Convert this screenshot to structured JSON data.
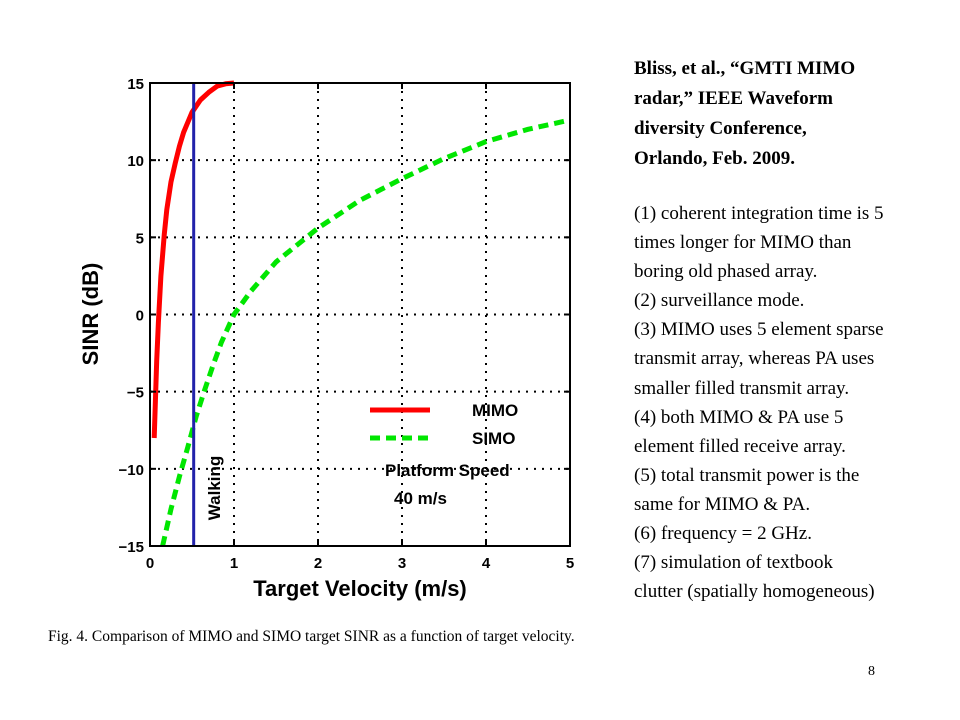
{
  "chart_data": {
    "type": "line",
    "xlabel": "Target Velocity (m/s)",
    "ylabel": "SINR (dB)",
    "xlim": [
      0,
      5
    ],
    "ylim": [
      -15,
      15
    ],
    "xticks": [
      "0",
      "1",
      "2",
      "3",
      "4",
      "5"
    ],
    "yticks": [
      "−15",
      "−10",
      "−5",
      "0",
      "5",
      "10",
      "15"
    ],
    "grid": true,
    "legend_position": "lower-right",
    "series": [
      {
        "name": "MIMO",
        "color": "#ff0000",
        "style": "solid",
        "x": [
          0.05,
          0.08,
          0.1,
          0.13,
          0.17,
          0.2,
          0.25,
          0.3,
          0.35,
          0.4,
          0.5,
          0.6,
          0.7,
          0.8,
          0.9,
          1.0
        ],
        "y": [
          -8,
          -3,
          -0.5,
          2.5,
          5.2,
          6.8,
          8.6,
          9.8,
          10.9,
          11.8,
          13.1,
          13.9,
          14.4,
          14.8,
          14.95,
          15
        ]
      },
      {
        "name": "SIMO",
        "color": "#00e600",
        "style": "dashed",
        "x": [
          0.15,
          0.25,
          0.35,
          0.45,
          0.55,
          0.65,
          0.75,
          0.85,
          1.0,
          1.2,
          1.5,
          2.0,
          2.5,
          3.0,
          3.5,
          4.0,
          4.5,
          5.0
        ],
        "y": [
          -15,
          -12.6,
          -10.5,
          -8.6,
          -6.6,
          -4.9,
          -3.3,
          -1.8,
          0,
          1.5,
          3.4,
          5.6,
          7.4,
          8.8,
          10.1,
          11.2,
          12.0,
          12.6
        ]
      }
    ],
    "vertical_line": {
      "x": 0.52,
      "color": "#2222aa",
      "label": "Walking"
    },
    "annotations": [
      "Platform Speed",
      "40 m/s"
    ]
  },
  "citation": [
    "Bliss, et al., “GMTI MIMO",
    "radar,” IEEE Waveform",
    "diversity Conference,",
    "Orlando, Feb. 2009."
  ],
  "notes": [
    "(1) coherent integration time is 5",
    "times longer for MIMO than",
    "boring old phased array.",
    "(2) surveillance mode.",
    "(3) MIMO uses 5 element sparse",
    "transmit array, whereas PA uses",
    "smaller filled transmit array.",
    "(4) both MIMO & PA use 5",
    "element filled receive array.",
    "(5) total transmit power is the",
    "same for MIMO & PA.",
    "(6) frequency = 2 GHz.",
    "(7) simulation of textbook",
    "clutter (spatially homogeneous)"
  ],
  "caption": "Fig. 4.   Comparison of MIMO and SIMO target SINR as a function of target velocity.",
  "page_number": "8"
}
